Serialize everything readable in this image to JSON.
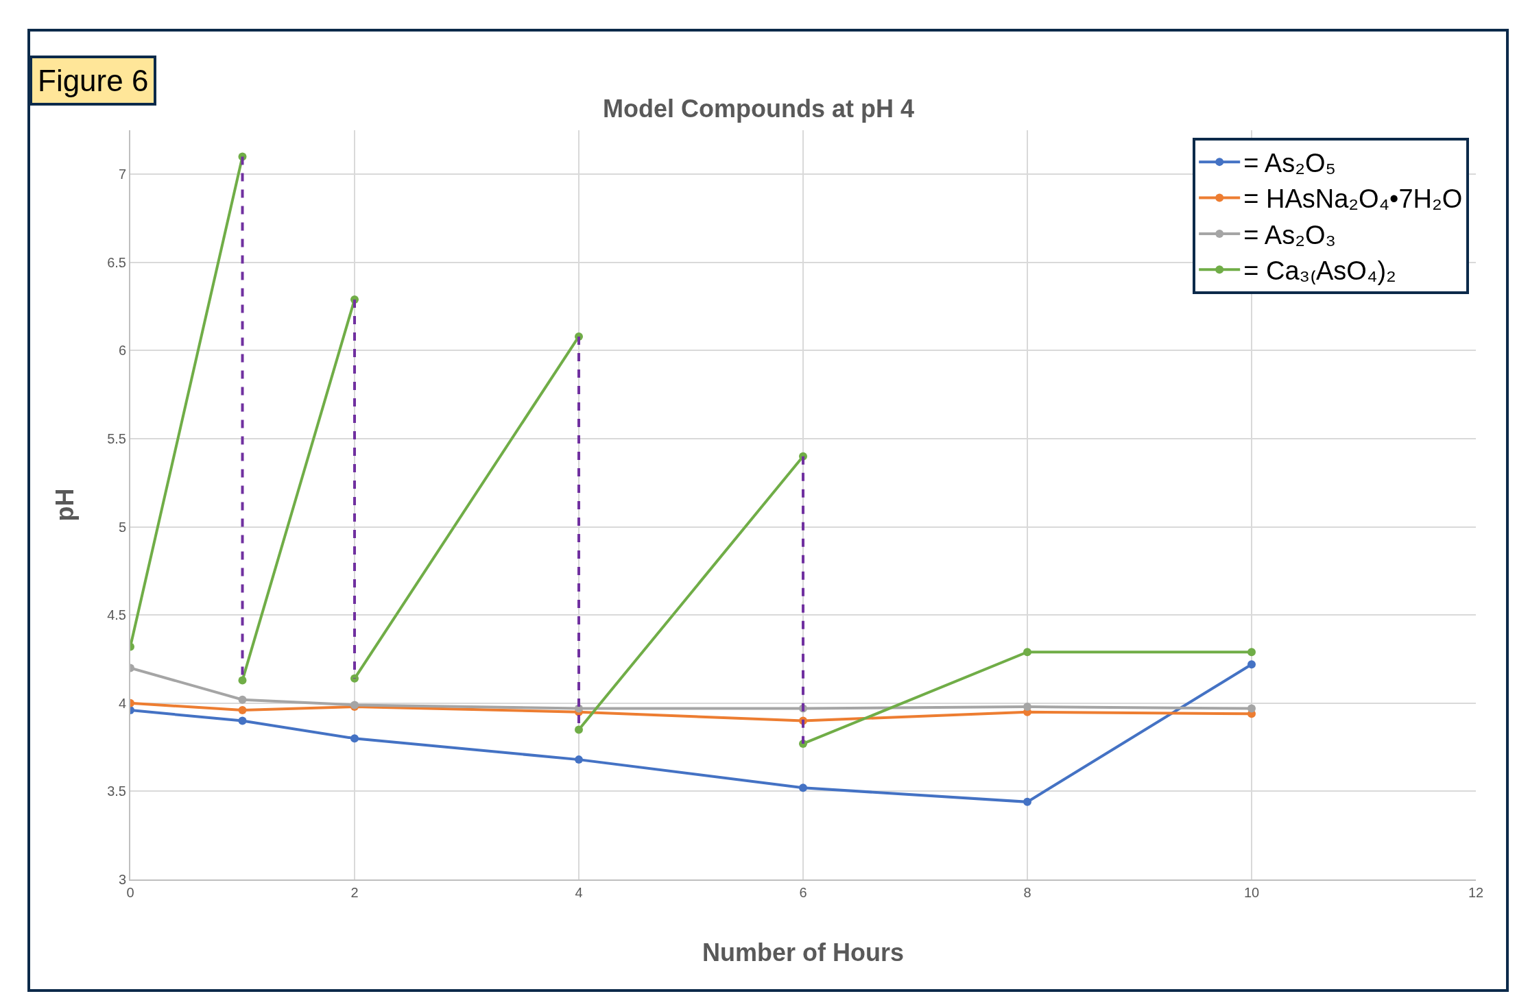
{
  "chart_data": {
    "type": "line",
    "title": "Model Compounds at pH 4",
    "xlabel": "Number of Hours",
    "ylabel": "pH",
    "annotations": [
      "Figure 6"
    ],
    "xlim": [
      0,
      12
    ],
    "xticks": [
      0,
      2,
      4,
      6,
      8,
      10,
      12
    ],
    "ylim": [
      3,
      7.25
    ],
    "yticks": [
      3,
      3.5,
      4,
      4.5,
      5,
      5.5,
      6,
      6.5,
      7
    ],
    "grid": true,
    "legend": "top right",
    "marker": "circle",
    "line_style": "solid",
    "series": [
      {
        "name": "= As₂O₅",
        "color": "#4472c4",
        "x": [
          0,
          1,
          2,
          4,
          6,
          8,
          10
        ],
        "values": [
          3.96,
          3.9,
          3.8,
          3.68,
          3.52,
          3.44,
          4.22
        ]
      },
      {
        "name": "= HAsNa₂O₄•7H₂O",
        "color": "#ed7d31",
        "x": [
          0,
          1,
          2,
          4,
          6,
          8,
          10
        ],
        "values": [
          4.0,
          3.96,
          3.98,
          3.95,
          3.9,
          3.95,
          3.94
        ]
      },
      {
        "name": "= As₂O₃",
        "color": "#a5a5a5",
        "x": [
          0,
          1,
          2,
          4,
          6,
          8,
          10
        ],
        "values": [
          4.2,
          4.02,
          3.99,
          3.97,
          3.97,
          3.98,
          3.97
        ]
      },
      {
        "name": "= Ca₃₍AsO₄)₂",
        "color": "#70ad47",
        "x": [
          0,
          1,
          null,
          1,
          2,
          null,
          2,
          4,
          null,
          4,
          6,
          null,
          6,
          8,
          10
        ],
        "values": [
          4.32,
          7.1,
          null,
          4.13,
          6.29,
          null,
          4.14,
          6.08,
          null,
          3.85,
          5.4,
          null,
          3.77,
          4.29,
          4.29
        ]
      },
      {
        "color": "#7030a0",
        "marker": "none",
        "line_style": "dashed",
        "x": [
          1,
          1,
          null,
          2,
          2,
          null,
          4,
          4,
          null,
          6,
          6
        ],
        "values": [
          7.1,
          4.13,
          null,
          6.29,
          4.14,
          null,
          6.08,
          3.85,
          null,
          5.4,
          3.77
        ]
      }
    ]
  }
}
